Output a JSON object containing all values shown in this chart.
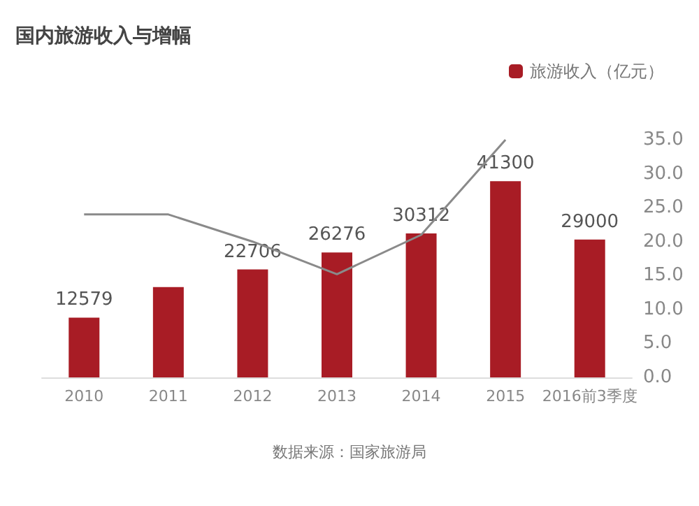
{
  "chart_data": {
    "type": "bar",
    "title": "国内旅游收入与增幅",
    "categories": [
      "2010",
      "2011",
      "2012",
      "2013",
      "2014",
      "2015",
      "2016前3季度"
    ],
    "series": [
      {
        "name": "旅游收入（亿元）",
        "color": "#a81c25",
        "values": [
          12579,
          19000,
          22706,
          26276,
          30312,
          41300,
          29000
        ],
        "value_labels": [
          "12579",
          null,
          "22706",
          "26276",
          "30312",
          "41300",
          "29000"
        ]
      },
      {
        "type": "line",
        "axis": "y2",
        "color": "#8a8a8a",
        "values": [
          24.0,
          24.0,
          20.0,
          15.2,
          21.0,
          35.0,
          null
        ]
      }
    ],
    "y2lim": [
      0,
      35
    ],
    "y2ticks": [
      {
        "value": 0,
        "label": "0.0"
      },
      {
        "value": 5,
        "label": "5.0"
      },
      {
        "value": 10,
        "label": "10.0"
      },
      {
        "value": 15,
        "label": "15.0"
      },
      {
        "value": 20,
        "label": "20.0"
      },
      {
        "value": 25,
        "label": "25.0"
      },
      {
        "value": 30,
        "label": "30.0"
      },
      {
        "value": 35,
        "label": "35.0"
      }
    ],
    "legend": "top right",
    "marker": "none",
    "annotations": [
      "数据来源：国家旅游局"
    ]
  }
}
